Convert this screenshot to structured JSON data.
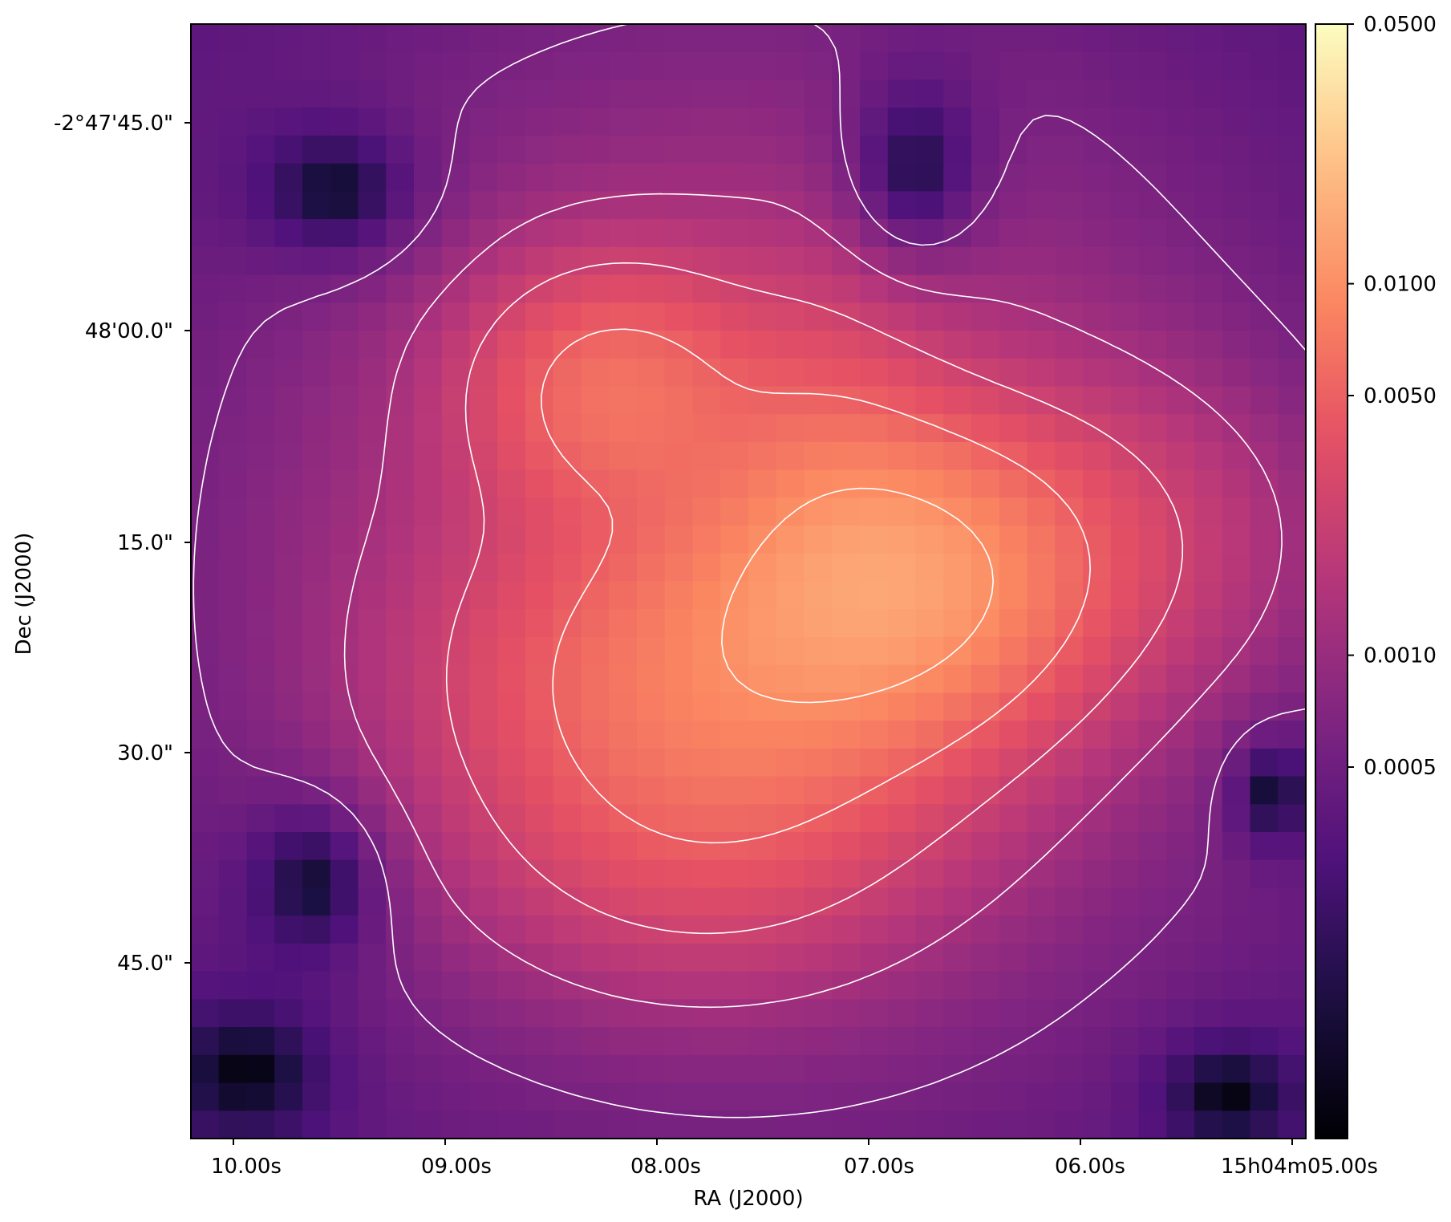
{
  "chart_data": {
    "type": "heatmap",
    "title": "",
    "xlabel": "RA (J2000)",
    "ylabel": "Dec (J2000)",
    "x_ticks": [
      "10.00s",
      "09.00s",
      "08.00s",
      "07.00s",
      "06.00s",
      "15h04m05.00s"
    ],
    "y_ticks": [
      "-2°47'45.0\"",
      "48'00.0\"",
      "15.0\"",
      "30.0\"",
      "45.0\""
    ],
    "colormap": "magma",
    "colorbar": {
      "scale": "log",
      "range": [
        5e-05,
        0.05
      ],
      "ticks": [
        "0.0500",
        "0.0100",
        "0.0050",
        "0.0010",
        "0.0005"
      ],
      "tick_values": [
        0.05,
        0.01,
        0.005,
        0.001,
        0.0005
      ]
    },
    "contour_color": "#ffffff",
    "contour_levels": 5,
    "grid": false,
    "peak_value": 0.02,
    "background_value": 0.0003
  }
}
